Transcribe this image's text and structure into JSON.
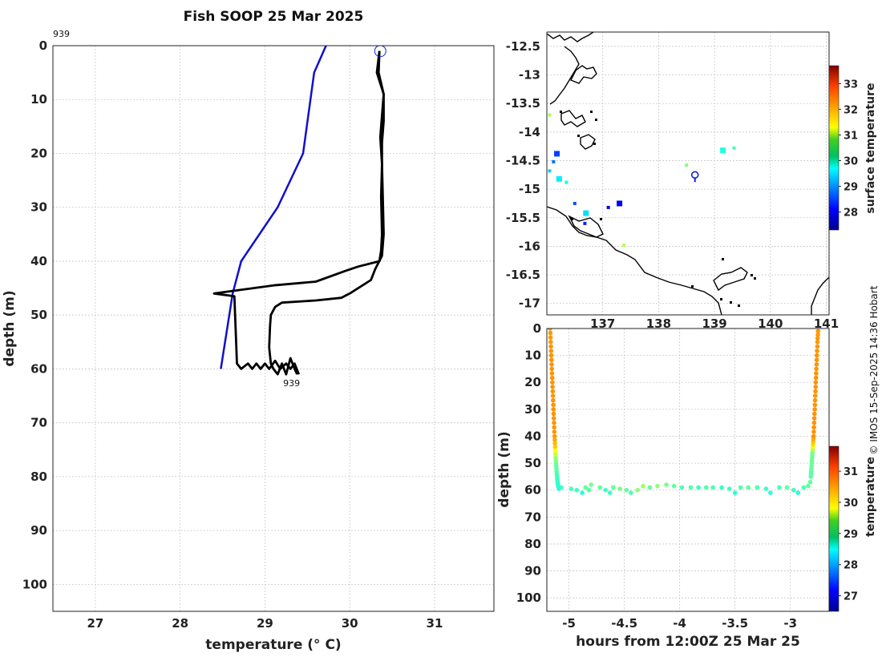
{
  "figure_title": "Fish SOOP 25 Mar 2025",
  "credit": "© IMOS 15-Sep-2025 14:36 Hobart",
  "chart_data": [
    {
      "type": "line",
      "panel": "profile",
      "xlabel": "temperature (° C)",
      "ylabel": "depth (m)",
      "xlim": [
        26.5,
        31.7
      ],
      "ylim": [
        105,
        0
      ],
      "xticks": [
        27,
        28,
        29,
        30,
        31
      ],
      "yticks": [
        0,
        10,
        20,
        30,
        40,
        50,
        60,
        70,
        80,
        90,
        100
      ],
      "grid": true,
      "top_label": "939",
      "end_label": "939",
      "start_marker": {
        "x": 30.36,
        "y": 1
      },
      "series": [
        {
          "color": "#1010cc",
          "points": [
            [
              29.72,
              0
            ],
            [
              29.58,
              5
            ],
            [
              29.45,
              20
            ],
            [
              29.15,
              30
            ],
            [
              28.72,
              40
            ],
            [
              28.62,
              46
            ],
            [
              28.48,
              60
            ]
          ]
        },
        {
          "color": "#000000",
          "points": [
            [
              30.35,
              1
            ],
            [
              30.34,
              5
            ],
            [
              30.4,
              9
            ],
            [
              30.38,
              13
            ],
            [
              30.36,
              17
            ],
            [
              30.38,
              22
            ],
            [
              30.37,
              28
            ],
            [
              30.38,
              35
            ],
            [
              30.37,
              38
            ],
            [
              30.35,
              40
            ],
            [
              30.1,
              41
            ],
            [
              29.95,
              41.8
            ],
            [
              29.6,
              43.8
            ],
            [
              29.1,
              44.5
            ],
            [
              28.4,
              46
            ],
            [
              28.64,
              46.5
            ],
            [
              28.66,
              55
            ],
            [
              28.67,
              59
            ],
            [
              28.72,
              60
            ],
            [
              28.8,
              59
            ],
            [
              28.85,
              60
            ],
            [
              28.9,
              59
            ],
            [
              28.95,
              60
            ],
            [
              29,
              59
            ],
            [
              29.05,
              60
            ],
            [
              29.12,
              58.5
            ],
            [
              29.18,
              60
            ],
            [
              29.25,
              59
            ],
            [
              29.3,
              60
            ],
            [
              29.35,
              59
            ],
            [
              29.4,
              61
            ]
          ]
        },
        {
          "color": "#000000",
          "points": [
            [
              30.35,
              1
            ],
            [
              30.32,
              5
            ],
            [
              30.4,
              9
            ],
            [
              30.4,
              14
            ],
            [
              30.38,
              18
            ],
            [
              30.38,
              22
            ],
            [
              30.39,
              28
            ],
            [
              30.4,
              35
            ],
            [
              30.38,
              39
            ],
            [
              30.3,
              41.5
            ],
            [
              30.25,
              43.5
            ],
            [
              30.0,
              46
            ],
            [
              29.9,
              46.8
            ],
            [
              29.6,
              47.3
            ],
            [
              29.2,
              47.7
            ],
            [
              29.12,
              48.5
            ],
            [
              29.07,
              50
            ],
            [
              29.06,
              52
            ],
            [
              29.05,
              56
            ],
            [
              29.07,
              59
            ],
            [
              29.1,
              60
            ],
            [
              29.15,
              61
            ],
            [
              29.2,
              59
            ],
            [
              29.25,
              61
            ],
            [
              29.3,
              58
            ],
            [
              29.35,
              60
            ],
            [
              29.38,
              61
            ]
          ]
        }
      ]
    },
    {
      "type": "heatmap",
      "panel": "map",
      "xticks": [
        137,
        138,
        139,
        140,
        141
      ],
      "yticks": [
        -12.5,
        -13,
        -13.5,
        -14,
        -14.5,
        -15,
        -15.5,
        -16,
        -16.5,
        -17
      ],
      "xlim": [
        136.0,
        141.05
      ],
      "ylim": [
        -17.2,
        -12.25
      ],
      "colorbar_label": "surface temperature",
      "colorbar_ticks": [
        28,
        29,
        30,
        31,
        32,
        33
      ],
      "colorbar_range": [
        27.3,
        33.7
      ],
      "track_marker": {
        "lon": 138.65,
        "lat": -14.75
      },
      "sst_patches": [
        {
          "lon": 136.05,
          "lat": -13.7,
          "value": 30.8
        },
        {
          "lon": 136.18,
          "lat": -14.38,
          "value": 28.5
        },
        {
          "lon": 136.12,
          "lat": -14.52,
          "value": 28.8
        },
        {
          "lon": 136.05,
          "lat": -14.68,
          "value": 29.4
        },
        {
          "lon": 136.22,
          "lat": -14.82,
          "value": 29.6
        },
        {
          "lon": 136.35,
          "lat": -14.88,
          "value": 29.8
        },
        {
          "lon": 136.5,
          "lat": -15.25,
          "value": 28.6
        },
        {
          "lon": 136.7,
          "lat": -15.42,
          "value": 29.5
        },
        {
          "lon": 136.68,
          "lat": -15.6,
          "value": 28.3
        },
        {
          "lon": 137.1,
          "lat": -15.32,
          "value": 28.1
        },
        {
          "lon": 137.3,
          "lat": -15.25,
          "value": 28.0
        },
        {
          "lon": 137.38,
          "lat": -15.98,
          "value": 30.8
        },
        {
          "lon": 138.5,
          "lat": -14.58,
          "value": 30.5
        },
        {
          "lon": 139.15,
          "lat": -14.32,
          "value": 29.9
        },
        {
          "lon": 139.35,
          "lat": -14.28,
          "value": 30.1
        }
      ]
    },
    {
      "type": "scatter",
      "panel": "section",
      "xlabel": "hours from 12:00Z 25 Mar 25",
      "ylabel": "depth (m)",
      "xlim": [
        -5.2,
        -2.65
      ],
      "ylim": [
        105,
        0
      ],
      "xticks": [
        -5,
        -4.5,
        -4,
        -3.5,
        -3
      ],
      "yticks": [
        0,
        10,
        20,
        30,
        40,
        50,
        60,
        70,
        80,
        90,
        100
      ],
      "colorbar_label": "temperature",
      "colorbar_ticks": [
        27,
        28,
        29,
        30,
        31
      ],
      "colorbar_range": [
        26.5,
        31.8
      ],
      "descent": [
        [
          -5.17,
          0,
          30.35
        ],
        [
          -5.165,
          5,
          30.35
        ],
        [
          -5.16,
          10,
          30.38
        ],
        [
          -5.155,
          15,
          30.38
        ],
        [
          -5.15,
          20,
          30.37
        ],
        [
          -5.145,
          25,
          30.37
        ],
        [
          -5.14,
          30,
          30.38
        ],
        [
          -5.135,
          35,
          30.37
        ],
        [
          -5.13,
          40,
          30.35
        ],
        [
          -5.125,
          44,
          30.1
        ],
        [
          -5.12,
          48,
          29.3
        ],
        [
          -5.115,
          51,
          29.0
        ],
        [
          -5.11,
          54,
          28.9
        ],
        [
          -5.105,
          56,
          28.8
        ],
        [
          -5.1,
          58,
          28.75
        ],
        [
          -5.09,
          59.5,
          28.7
        ]
      ],
      "bottom": [
        [
          -5.07,
          59,
          28.8
        ],
        [
          -4.98,
          59.5,
          28.9
        ],
        [
          -4.93,
          60,
          28.8
        ],
        [
          -4.88,
          61,
          28.7
        ],
        [
          -4.85,
          59,
          29.0
        ],
        [
          -4.82,
          60,
          28.9
        ],
        [
          -4.8,
          58,
          29.1
        ],
        [
          -4.72,
          59,
          29.0
        ],
        [
          -4.67,
          60,
          28.8
        ],
        [
          -4.63,
          61,
          28.8
        ],
        [
          -4.6,
          59,
          29.0
        ],
        [
          -4.54,
          59.5,
          29.1
        ],
        [
          -4.48,
          60,
          29.0
        ],
        [
          -4.44,
          61,
          28.9
        ],
        [
          -4.38,
          60,
          29.2
        ],
        [
          -4.33,
          58.5,
          29.3
        ],
        [
          -4.27,
          59,
          29.0
        ],
        [
          -4.2,
          58.5,
          29.2
        ],
        [
          -4.12,
          58,
          29.1
        ],
        [
          -4.05,
          58.5,
          29.0
        ],
        [
          -3.98,
          59,
          28.9
        ],
        [
          -3.9,
          59,
          28.9
        ],
        [
          -3.83,
          59,
          28.8
        ],
        [
          -3.76,
          59,
          28.9
        ],
        [
          -3.7,
          59,
          28.9
        ],
        [
          -3.62,
          59,
          28.8
        ],
        [
          -3.55,
          59.5,
          28.8
        ],
        [
          -3.5,
          61,
          28.7
        ],
        [
          -3.45,
          59,
          28.9
        ],
        [
          -3.38,
          59,
          29.0
        ],
        [
          -3.3,
          59,
          28.9
        ],
        [
          -3.22,
          59.5,
          28.8
        ],
        [
          -3.18,
          61,
          28.7
        ],
        [
          -3.1,
          59,
          28.9
        ],
        [
          -3.03,
          59,
          29.0
        ],
        [
          -2.97,
          60,
          28.8
        ],
        [
          -2.93,
          61,
          28.7
        ],
        [
          -2.88,
          59,
          28.9
        ],
        [
          -2.84,
          58.5,
          29.0
        ],
        [
          -2.82,
          57,
          29.0
        ]
      ],
      "ascent": [
        [
          -2.815,
          55,
          28.95
        ],
        [
          -2.81,
          52,
          29.0
        ],
        [
          -2.805,
          49,
          29.05
        ],
        [
          -2.8,
          46,
          29.1
        ],
        [
          -2.795,
          43,
          30.0
        ],
        [
          -2.79,
          40,
          30.38
        ],
        [
          -2.785,
          35,
          30.38
        ],
        [
          -2.78,
          30,
          30.38
        ],
        [
          -2.775,
          25,
          30.37
        ],
        [
          -2.77,
          20,
          30.38
        ],
        [
          -2.765,
          15,
          30.37
        ],
        [
          -2.76,
          10,
          30.38
        ],
        [
          -2.755,
          5,
          30.35
        ],
        [
          -2.75,
          1,
          30.35
        ]
      ]
    }
  ],
  "colors": {
    "profile_blue": "#1010cc",
    "profile_black": "#000000",
    "coast": "#000000",
    "marker_blue": "#1020d0"
  }
}
